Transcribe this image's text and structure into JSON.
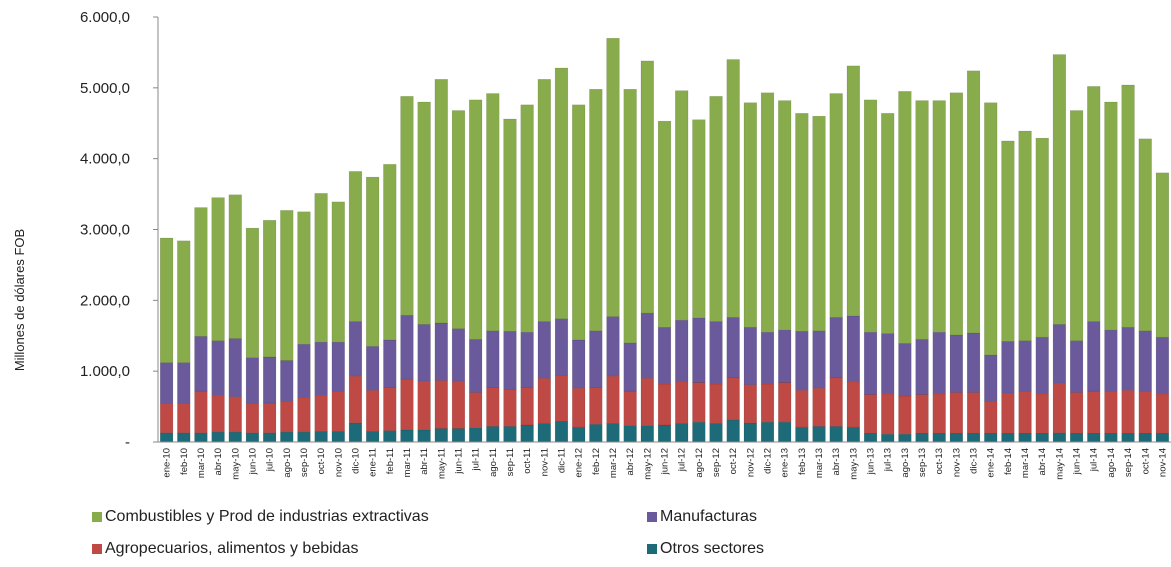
{
  "chart_data": {
    "type": "bar",
    "stacked": true,
    "ylabel": "Millones de dólares FOB",
    "xlabel": "",
    "ylim": [
      0,
      6000
    ],
    "y_ticks": [
      "-",
      "1.000,0",
      "2.000,0",
      "3.000,0",
      "4.000,0",
      "5.000,0",
      "6.000,0"
    ],
    "grid": false,
    "legend_position": "bottom",
    "categories": [
      "ene-10",
      "feb-10",
      "mar-10",
      "abr-10",
      "may-10",
      "jun-10",
      "jul-10",
      "ago-10",
      "sep-10",
      "oct-10",
      "nov-10",
      "dic-10",
      "ene-11",
      "feb-11",
      "mar-11",
      "abr-11",
      "may-11",
      "jun-11",
      "jul-11",
      "ago-11",
      "sep-11",
      "oct-11",
      "nov-11",
      "dic-11",
      "ene-12",
      "feb-12",
      "mar-12",
      "abr-12",
      "may-12",
      "jun-12",
      "jul-12",
      "ago-12",
      "sep-12",
      "oct-12",
      "nov-12",
      "dic-12",
      "ene-13",
      "feb-13",
      "mar-13",
      "abr-13",
      "may-13",
      "jun-13",
      "jul-13",
      "ago-13",
      "sep-13",
      "oct-13",
      "nov-13",
      "dic-13",
      "ene-14",
      "feb-14",
      "mar-14",
      "abr-14",
      "may-14",
      "jun-14",
      "jul-14",
      "ago-14",
      "sep-14",
      "oct-14",
      "nov-14"
    ],
    "totals": [
      2880,
      2840,
      3310,
      3450,
      3490,
      3020,
      3130,
      3270,
      3250,
      3510,
      3390,
      3820,
      3740,
      3920,
      4880,
      4800,
      5120,
      4680,
      4830,
      4920,
      4560,
      4760,
      5120,
      5280,
      4760,
      4980,
      5700,
      4980,
      5380,
      4530,
      4960,
      4550,
      4880,
      5400,
      4790,
      4930,
      4820,
      4640,
      4600,
      4920,
      5310,
      4830,
      4640,
      4950,
      4820,
      4820,
      4930,
      5240,
      4790,
      4250,
      4390,
      4290,
      5470,
      4680,
      5020,
      4800,
      5040,
      4280,
      3800
    ],
    "series": [
      {
        "name": "Otros sectores",
        "color": "#1d6b78",
        "values": [
          130,
          130,
          130,
          140,
          140,
          130,
          130,
          140,
          140,
          150,
          150,
          270,
          150,
          160,
          170,
          170,
          190,
          190,
          200,
          220,
          220,
          240,
          260,
          290,
          210,
          250,
          260,
          230,
          230,
          240,
          260,
          280,
          260,
          310,
          270,
          280,
          280,
          210,
          220,
          220,
          210,
          120,
          110,
          110,
          120,
          120,
          120,
          120,
          120,
          120,
          120,
          120,
          130,
          120,
          120,
          120,
          120,
          120,
          120
        ]
      },
      {
        "name": "Agropecuarios, alimentos y bebidas",
        "color": "#bf4a45",
        "values": [
          410,
          410,
          590,
          520,
          500,
          410,
          420,
          440,
          490,
          510,
          560,
          660,
          580,
          610,
          720,
          690,
          680,
          670,
          500,
          550,
          520,
          530,
          640,
          650,
          550,
          520,
          670,
          490,
          670,
          580,
          590,
          560,
          560,
          600,
          540,
          540,
          560,
          520,
          540,
          690,
          640,
          550,
          570,
          540,
          550,
          560,
          580,
          580,
          460,
          570,
          590,
          560,
          700,
          580,
          600,
          590,
          610,
          590,
          560
        ]
      },
      {
        "name": "Manufacturas",
        "color": "#6b5a9b",
        "values": [
          580,
          580,
          770,
          770,
          820,
          650,
          650,
          570,
          750,
          750,
          700,
          770,
          620,
          670,
          900,
          800,
          810,
          740,
          750,
          800,
          820,
          780,
          800,
          800,
          680,
          800,
          840,
          680,
          920,
          800,
          870,
          910,
          880,
          850,
          810,
          730,
          740,
          830,
          810,
          850,
          930,
          880,
          850,
          740,
          780,
          870,
          810,
          840,
          650,
          730,
          720,
          800,
          830,
          730,
          980,
          870,
          890,
          860,
          800
        ]
      },
      {
        "name": "Combustibles y Prod de industrias extractivas",
        "color": "#88ac4c",
        "values": [
          1760,
          1720,
          1820,
          2020,
          2030,
          1830,
          1930,
          2120,
          1870,
          2100,
          1980,
          2120,
          2390,
          2480,
          3090,
          3140,
          3440,
          3080,
          3380,
          3350,
          3000,
          3210,
          3420,
          3540,
          3320,
          3410,
          3930,
          3580,
          3560,
          2910,
          3240,
          2800,
          3180,
          3640,
          3170,
          3380,
          3240,
          3080,
          3030,
          3160,
          3530,
          3280,
          3110,
          3560,
          3370,
          3270,
          3420,
          3700,
          3560,
          2830,
          2960,
          2810,
          3810,
          3250,
          3320,
          3220,
          3420,
          2710,
          2320
        ]
      }
    ],
    "legend_order": [
      "Combustibles y Prod de industrias extractivas",
      "Manufacturas",
      "Agropecuarios, alimentos y bebidas",
      "Otros sectores"
    ]
  }
}
